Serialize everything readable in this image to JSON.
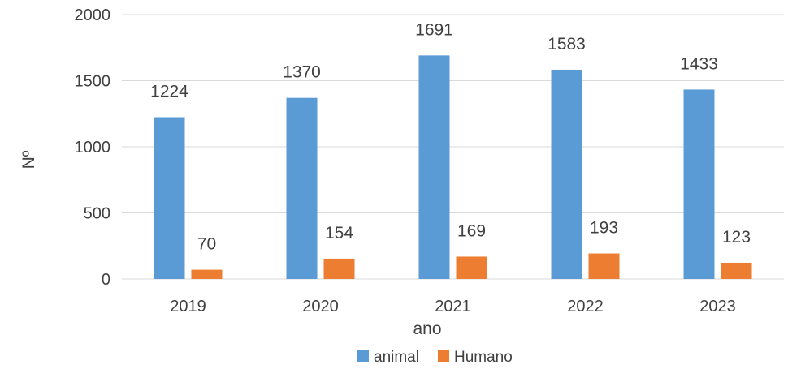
{
  "chart_data": {
    "type": "bar",
    "categories": [
      "2019",
      "2020",
      "2021",
      "2022",
      "2023"
    ],
    "series": [
      {
        "name": "animal",
        "values": [
          1224,
          1370,
          1691,
          1583,
          1433
        ],
        "color": "#5b9bd5"
      },
      {
        "name": "Humano",
        "values": [
          70,
          154,
          169,
          193,
          123
        ],
        "color": "#ed7d31"
      }
    ],
    "xlabel": "ano",
    "ylabel": "Nº",
    "ylim": [
      0,
      2000
    ],
    "yticks": [
      0,
      500,
      1000,
      1500,
      2000
    ],
    "grid": true,
    "legend_position": "bottom"
  }
}
